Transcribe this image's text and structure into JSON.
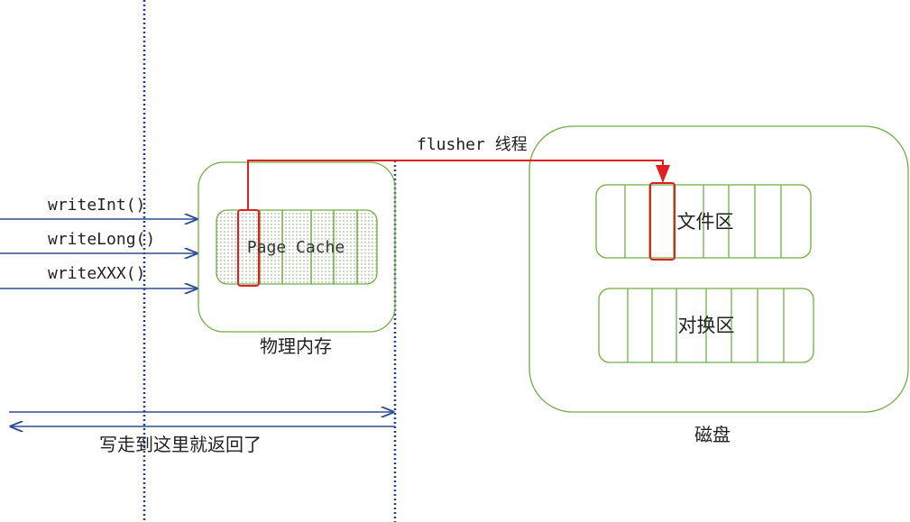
{
  "calls": [
    "writeInt()",
    "writeLong()",
    "writeXXX()"
  ],
  "page_cache_label": "Page Cache",
  "memory_label": "物理内存",
  "flusher_label": "flusher 线程",
  "file_area_label": "文件区",
  "swap_area_label": "对换区",
  "disk_label": "磁盘",
  "return_label": "写走到这里就返回了",
  "colors": {
    "green": "#70ad47",
    "red": "#e02020",
    "navy": "#2f4f8f",
    "dotted": "#1f3f8f"
  }
}
